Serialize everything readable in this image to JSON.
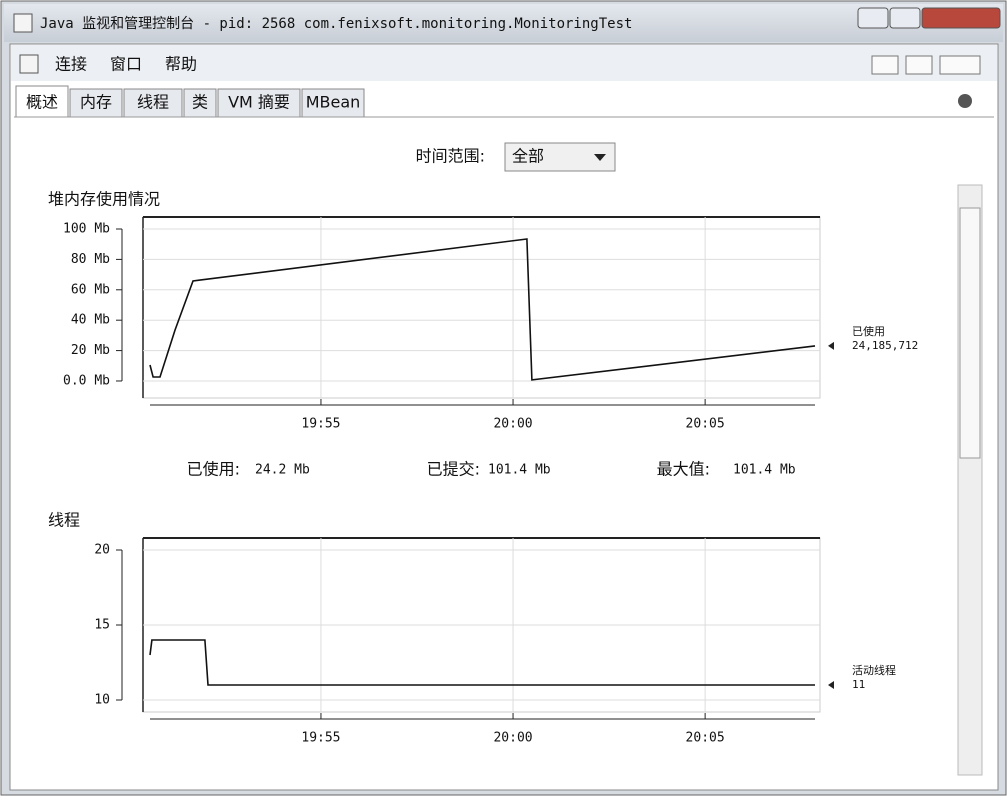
{
  "window": {
    "title": "Java 监视和管理控制台 - pid: 2568 com.fenixsoft.monitoring.MonitoringTest",
    "menu": [
      "连接",
      "窗口",
      "帮助"
    ],
    "tabs": [
      "概述",
      "内存",
      "线程",
      "类",
      "VM 摘要",
      "MBean"
    ],
    "time_range_label": "时间范围:",
    "time_range_value": "全部"
  },
  "charts": [
    {
      "type": "line",
      "title": "堆内存使用情况",
      "x": [
        1190.55,
        1190.63,
        1190.81,
        1191.2,
        1191.67,
        1191.85,
        1200.36,
        1200.49,
        1207.86
      ],
      "series": [
        {
          "name": "已使用",
          "color": "#111111",
          "values": [
            10.5,
            2.6,
            2.6,
            33.5,
            65.8,
            66.4,
            93.4,
            0.7,
            23.1
          ],
          "end_label": "24,185,712"
        }
      ],
      "xlim": [
        1190.55,
        1207.86
      ],
      "xticks": [
        {
          "value": 1195,
          "label": "19:55"
        },
        {
          "value": 1200,
          "label": "20:00"
        },
        {
          "value": 1205,
          "label": "20:05"
        }
      ],
      "ylim": [
        -11.2,
        107.9
      ],
      "yticks": [
        {
          "value": 0,
          "label": "0.0 Mb"
        },
        {
          "value": 20,
          "label": "20 Mb"
        },
        {
          "value": 40,
          "label": "40 Mb"
        },
        {
          "value": 60,
          "label": "60 Mb"
        },
        {
          "value": 80,
          "label": "80 Mb"
        },
        {
          "value": 100,
          "label": "100 Mb"
        }
      ],
      "grid": true
    },
    {
      "type": "line",
      "title": "线程",
      "x": [
        1190.55,
        1190.6,
        1191.98,
        1192.06,
        1207.86
      ],
      "series": [
        {
          "name": "活动线程",
          "color": "#111111",
          "values": [
            13,
            14,
            14,
            11,
            11
          ],
          "end_label": "11"
        }
      ],
      "xlim": [
        1190.55,
        1207.86
      ],
      "xticks": [
        {
          "value": 1195,
          "label": "19:55"
        },
        {
          "value": 1200,
          "label": "20:00"
        },
        {
          "value": 1205,
          "label": "20:05"
        }
      ],
      "ylim": [
        9.2,
        20.8
      ],
      "yticks": [
        10,
        15,
        20
      ],
      "grid": true
    }
  ],
  "memory_summary": [
    {
      "label": "已使用:",
      "value": "24.2 Mb"
    },
    {
      "label": "已提交:",
      "value": "101.4 Mb"
    },
    {
      "label": "最大值:",
      "value": "101.4 Mb"
    }
  ]
}
